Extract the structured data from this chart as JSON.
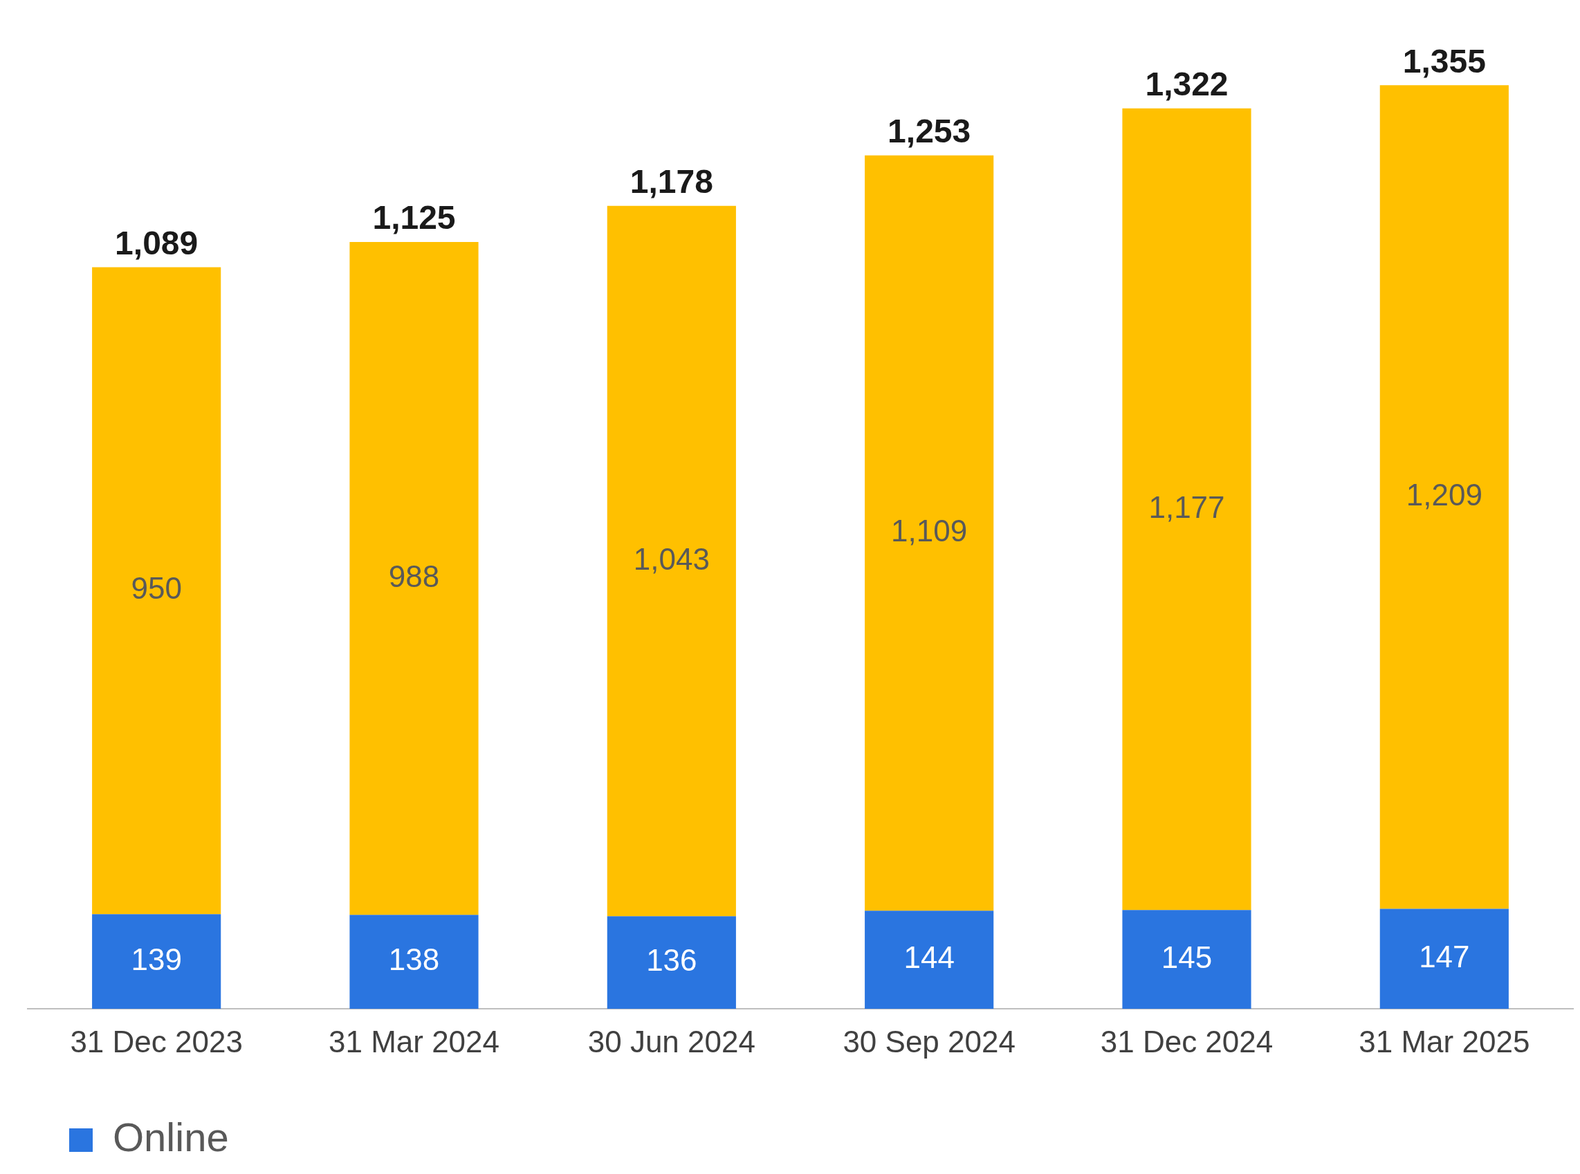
{
  "chart_data": {
    "type": "bar",
    "stacked": true,
    "categories": [
      "31 Dec 2023",
      "31 Mar 2024",
      "30 Jun 2024",
      "30 Sep 2024",
      "31 Dec 2024",
      "31 Mar 2025"
    ],
    "series": [
      {
        "name": "Online",
        "color": "#2a75e0",
        "values": [
          139,
          138,
          136,
          144,
          145,
          147
        ],
        "value_labels": [
          "139",
          "138",
          "136",
          "144",
          "145",
          "147"
        ]
      },
      {
        "color": "#ffc000",
        "values": [
          950,
          988,
          1043,
          1109,
          1177,
          1209
        ],
        "value_labels": [
          "950",
          "988",
          "1,043",
          "1,109",
          "1,177",
          "1,209"
        ]
      }
    ],
    "totals": [
      "1,089",
      "1,125",
      "1,178",
      "1,253",
      "1,322",
      "1,355"
    ],
    "grid": false,
    "legend": "bottom left",
    "tick_labels": "x"
  }
}
